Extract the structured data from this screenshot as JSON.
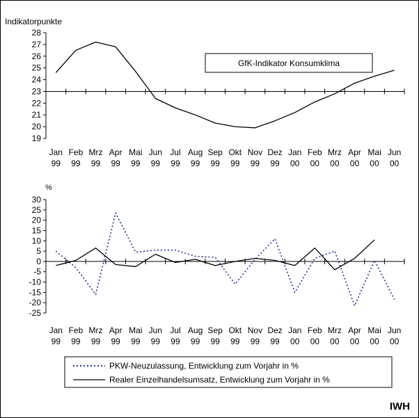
{
  "source_label": "IWH",
  "chart_data": [
    {
      "type": "line",
      "ylabel": "Indikatorpunkte",
      "ylim": [
        19,
        28
      ],
      "yticks": [
        19,
        20,
        21,
        22,
        23,
        24,
        25,
        26,
        27,
        28
      ],
      "x_axis_crosses_at": 23,
      "grid": false,
      "categories": [
        "Jan 99",
        "Feb 99",
        "Mrz 99",
        "Apr 99",
        "Mai 99",
        "Jun 99",
        "Jul 99",
        "Aug 99",
        "Sep 99",
        "Okt 99",
        "Nov 99",
        "Dez 99",
        "Jan 00",
        "Feb 00",
        "Mrz 00",
        "Apr 00",
        "Mai 00",
        "Jun 00"
      ],
      "category_labels": [
        [
          "Jan",
          "99"
        ],
        [
          "Feb",
          "99"
        ],
        [
          "Mrz",
          "99"
        ],
        [
          "Apr",
          "99"
        ],
        [
          "Mai",
          "99"
        ],
        [
          "Jun",
          "99"
        ],
        [
          "Jul",
          "99"
        ],
        [
          "Aug",
          "99"
        ],
        [
          "Sep",
          "99"
        ],
        [
          "Okt",
          "99"
        ],
        [
          "Nov",
          "99"
        ],
        [
          "Dez",
          "99"
        ],
        [
          "Jan",
          "00"
        ],
        [
          "Feb",
          "00"
        ],
        [
          "Mrz",
          "00"
        ],
        [
          "Apr",
          "00"
        ],
        [
          "Mai",
          "00"
        ],
        [
          "Jun",
          "00"
        ]
      ],
      "legend": "GfK-Indikator Konsumklima",
      "series": [
        {
          "name": "GfK-Indikator Konsumklima",
          "color": "#000000",
          "style": "solid",
          "values": [
            24.6,
            26.5,
            27.2,
            26.8,
            24.7,
            22.4,
            21.6,
            21.0,
            20.3,
            20.0,
            19.9,
            20.5,
            21.2,
            22.1,
            22.8,
            23.7,
            24.3,
            24.8
          ]
        }
      ]
    },
    {
      "type": "line",
      "ylabel": "%",
      "ylim": [
        -25,
        30
      ],
      "yticks": [
        -25,
        -20,
        -15,
        -10,
        -5,
        0,
        5,
        10,
        15,
        20,
        25,
        30
      ],
      "x_axis_crosses_at": 0,
      "grid": false,
      "categories": [
        "Jan 99",
        "Feb 99",
        "Mrz 99",
        "Apr 99",
        "Mai 99",
        "Jun 99",
        "Jul 99",
        "Aug 99",
        "Sep 99",
        "Okt 99",
        "Nov 99",
        "Dez 99",
        "Jan 00",
        "Feb 00",
        "Mrz 00",
        "Apr 00",
        "Mai 00",
        "Jun 00"
      ],
      "category_labels": [
        [
          "Jan",
          "99"
        ],
        [
          "Feb",
          "99"
        ],
        [
          "Mrz",
          "99"
        ],
        [
          "Apr",
          "99"
        ],
        [
          "Mai",
          "99"
        ],
        [
          "Jun",
          "99"
        ],
        [
          "Jul",
          "99"
        ],
        [
          "Aug",
          "99"
        ],
        [
          "Sep",
          "99"
        ],
        [
          "Okt",
          "99"
        ],
        [
          "Nov",
          "99"
        ],
        [
          "Dez",
          "99"
        ],
        [
          "Jan",
          "00"
        ],
        [
          "Feb",
          "00"
        ],
        [
          "Mrz",
          "00"
        ],
        [
          "Apr",
          "00"
        ],
        [
          "Mai",
          "00"
        ],
        [
          "Jun",
          "00"
        ]
      ],
      "legend_position": "bottom",
      "series": [
        {
          "name": "PKW-Neuzulassung, Entwicklung zum Vorjahr in %",
          "color": "#1f2f9e",
          "style": "dotted",
          "values": [
            5,
            -3,
            -16,
            23.5,
            4.5,
            5.5,
            5.5,
            2.5,
            2,
            -11,
            1,
            11,
            -15,
            1.5,
            5,
            -21.5,
            0.5,
            -18.5
          ]
        },
        {
          "name": "Realer Einzelhandelsumsatz, Entwicklung zum Vorjahr in %",
          "color": "#000000",
          "style": "solid",
          "values": [
            -2,
            0.5,
            6.5,
            -1.5,
            -2.5,
            3.5,
            -0.5,
            1,
            -2,
            0,
            1.5,
            0.5,
            -2,
            6.5,
            -4,
            1.5,
            10.5,
            null
          ]
        }
      ]
    }
  ]
}
